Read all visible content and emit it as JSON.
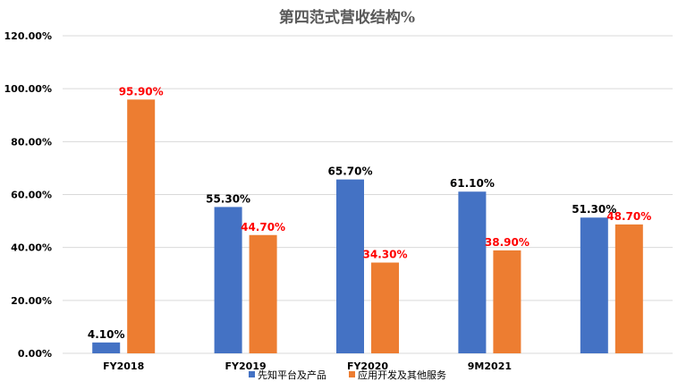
{
  "chart_data": {
    "type": "bar",
    "title": "第四范式营收结构%",
    "categories": [
      "FY2018",
      "FY2019",
      "FY2020",
      "9M2021",
      ""
    ],
    "series": [
      {
        "name": "先知平台及产品",
        "color": "#4472C4",
        "label_color": "#000000",
        "values": [
          4.1,
          55.3,
          65.7,
          61.1,
          51.3
        ],
        "labels": [
          "4.10%",
          "55.30%",
          "65.70%",
          "61.10%",
          "51.30%"
        ]
      },
      {
        "name": "应用开发及其他服务",
        "color": "#ED7D31",
        "label_color": "#FF0000",
        "values": [
          95.9,
          44.7,
          34.3,
          38.9,
          48.7
        ],
        "labels": [
          "95.90%",
          "44.70%",
          "34.30%",
          "38.90%",
          "48.70%"
        ]
      }
    ],
    "yticks": [
      "0.00%",
      "20.00%",
      "40.00%",
      "60.00%",
      "80.00%",
      "100.00%",
      "120.00%"
    ],
    "ylim": [
      0,
      120
    ],
    "grid": true,
    "legend_position": "bottom"
  }
}
